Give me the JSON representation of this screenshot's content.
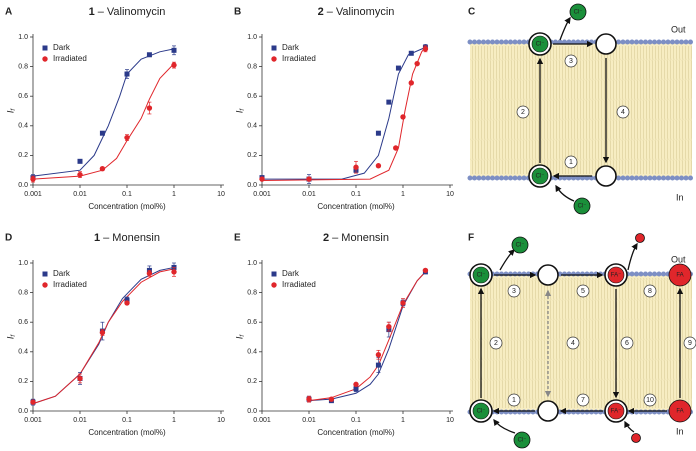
{
  "chart_data": [
    {
      "type": "scatter",
      "panel": "A",
      "compound": "1",
      "title": "– Valinomycin",
      "xlabel": "Concentration (mol%)",
      "ylabel": "I",
      "ylabel_subscript": "f",
      "xscale": "log",
      "xlim": [
        0.001,
        10
      ],
      "xticks": [
        0.001,
        0.01,
        0.1,
        1,
        10
      ],
      "ylim": [
        0,
        1
      ],
      "yticks": [
        {
          "value": 0,
          "label": "0.0"
        },
        0.2,
        0.4,
        0.6,
        0.8,
        {
          "value": 1,
          "label": "1.0"
        }
      ],
      "legend": "upper left",
      "series": [
        {
          "name": "Dark",
          "color": "#2b3a8a",
          "marker": "square",
          "x": [
            0.001,
            0.01,
            0.03,
            0.1,
            0.3,
            1
          ],
          "values": [
            0.05,
            0.16,
            0.35,
            0.75,
            0.88,
            0.91
          ],
          "errors": [
            0.02,
            0.01,
            0.01,
            0.03,
            0.01,
            0.03
          ]
        },
        {
          "name": "Irradiated",
          "color": "#e0262b",
          "marker": "circle",
          "x": [
            0.001,
            0.01,
            0.03,
            0.1,
            0.3,
            1
          ],
          "values": [
            0.04,
            0.07,
            0.11,
            0.32,
            0.52,
            0.81
          ],
          "errors": [
            0.02,
            0.02,
            0.01,
            0.02,
            0.04,
            0.02
          ]
        }
      ],
      "fits": [
        {
          "color": "#2b3a8a",
          "x": [
            0.001,
            0.01,
            0.02,
            0.04,
            0.07,
            0.1,
            0.2,
            0.5,
            1
          ],
          "values": [
            0.06,
            0.1,
            0.2,
            0.4,
            0.6,
            0.75,
            0.85,
            0.9,
            0.92
          ]
        },
        {
          "color": "#e0262b",
          "x": [
            0.001,
            0.01,
            0.03,
            0.06,
            0.1,
            0.2,
            0.3,
            0.5,
            1
          ],
          "values": [
            0.04,
            0.06,
            0.1,
            0.18,
            0.3,
            0.45,
            0.58,
            0.72,
            0.82
          ]
        }
      ]
    },
    {
      "type": "scatter",
      "panel": "B",
      "compound": "2",
      "title": "– Valinomycin",
      "xlabel": "Concentration (mol%)",
      "ylabel": "I",
      "ylabel_subscript": "f",
      "xscale": "log",
      "xlim": [
        0.001,
        10
      ],
      "xticks": [
        0.001,
        0.01,
        0.1,
        1,
        10
      ],
      "ylim": [
        0,
        1
      ],
      "yticks": [
        {
          "value": 0,
          "label": "0.0"
        },
        0.2,
        0.4,
        0.6,
        0.8,
        {
          "value": 1,
          "label": "1.0"
        }
      ],
      "legend": "upper left",
      "series": [
        {
          "name": "Dark",
          "color": "#2b3a8a",
          "marker": "square",
          "x": [
            0.001,
            0.01,
            0.1,
            0.3,
            0.5,
            0.8,
            1.5,
            3
          ],
          "values": [
            0.05,
            0.04,
            0.1,
            0.35,
            0.56,
            0.79,
            0.89,
            0.93
          ],
          "errors": [
            0.01,
            0.03,
            0.02,
            0.01,
            0.01,
            0.01,
            0.01,
            0.02
          ]
        },
        {
          "name": "Irradiated",
          "color": "#e0262b",
          "marker": "circle",
          "x": [
            0.001,
            0.01,
            0.1,
            0.3,
            0.7,
            1,
            1.5,
            2,
            3
          ],
          "values": [
            0.04,
            0.04,
            0.12,
            0.13,
            0.25,
            0.46,
            0.69,
            0.82,
            0.92
          ],
          "errors": [
            0.01,
            0.01,
            0.04,
            0.01,
            0.01,
            0.01,
            0.01,
            0.01,
            0.02
          ]
        }
      ],
      "fits": [
        {
          "color": "#2b3a8a",
          "x": [
            0.001,
            0.05,
            0.15,
            0.3,
            0.5,
            0.8,
            1.3,
            3
          ],
          "values": [
            0.04,
            0.04,
            0.08,
            0.2,
            0.45,
            0.75,
            0.88,
            0.93
          ]
        },
        {
          "color": "#e0262b",
          "x": [
            0.001,
            0.2,
            0.5,
            0.8,
            1.1,
            1.6,
            2.5,
            3
          ],
          "values": [
            0.03,
            0.04,
            0.1,
            0.25,
            0.5,
            0.75,
            0.9,
            0.93
          ]
        }
      ]
    },
    {
      "type": "scatter",
      "panel": "D",
      "compound": "1",
      "title": "– Monensin",
      "xlabel": "Concentration (mol%)",
      "ylabel": "I",
      "ylabel_subscript": "f",
      "xscale": "log",
      "xlim": [
        0.001,
        10
      ],
      "xticks": [
        0.001,
        0.01,
        0.1,
        1,
        10
      ],
      "ylim": [
        0,
        1
      ],
      "yticks": [
        {
          "value": 0,
          "label": "0.0"
        },
        0.2,
        0.4,
        0.6,
        0.8,
        {
          "value": 1,
          "label": "1.0"
        }
      ],
      "legend": "upper left",
      "series": [
        {
          "name": "Dark",
          "color": "#2b3a8a",
          "marker": "square",
          "x": [
            0.001,
            0.01,
            0.03,
            0.1,
            0.3,
            1
          ],
          "values": [
            0.06,
            0.22,
            0.54,
            0.75,
            0.95,
            0.97
          ],
          "errors": [
            0.02,
            0.04,
            0.06,
            0.02,
            0.03,
            0.03
          ]
        },
        {
          "name": "Irradiated",
          "color": "#e0262b",
          "marker": "circle",
          "x": [
            0.001,
            0.01,
            0.03,
            0.1,
            0.3,
            1
          ],
          "values": [
            0.06,
            0.22,
            0.53,
            0.73,
            0.93,
            0.94
          ],
          "errors": [
            0.01,
            0.03,
            0.02,
            0.01,
            0.02,
            0.03
          ]
        }
      ],
      "fits": [
        {
          "color": "#2b3a8a",
          "x": [
            0.001,
            0.003,
            0.01,
            0.025,
            0.04,
            0.08,
            0.2,
            0.5,
            1
          ],
          "values": [
            0.05,
            0.1,
            0.25,
            0.45,
            0.6,
            0.76,
            0.89,
            0.95,
            0.97
          ]
        },
        {
          "color": "#e0262b",
          "x": [
            0.001,
            0.003,
            0.01,
            0.025,
            0.04,
            0.08,
            0.2,
            0.5,
            1
          ],
          "values": [
            0.05,
            0.1,
            0.25,
            0.46,
            0.6,
            0.74,
            0.87,
            0.94,
            0.96
          ]
        }
      ]
    },
    {
      "type": "scatter",
      "panel": "E",
      "compound": "2",
      "title": "– Monensin",
      "xlabel": "Concentration (mol%)",
      "ylabel": "I",
      "ylabel_subscript": "f",
      "xscale": "log",
      "xlim": [
        0.001,
        10
      ],
      "xticks": [
        0.001,
        0.01,
        0.1,
        1,
        10
      ],
      "ylim": [
        0,
        1
      ],
      "yticks": [
        {
          "value": 0,
          "label": "0.0"
        },
        0.2,
        0.4,
        0.6,
        0.8,
        {
          "value": 1,
          "label": "1.0"
        }
      ],
      "legend": "upper left",
      "series": [
        {
          "name": "Dark",
          "color": "#2b3a8a",
          "marker": "square",
          "x": [
            0.01,
            0.03,
            0.1,
            0.3,
            0.5,
            1,
            3
          ],
          "values": [
            0.08,
            0.07,
            0.15,
            0.31,
            0.55,
            0.73,
            0.94
          ],
          "errors": [
            0.02,
            0.01,
            0.02,
            0.05,
            0.05,
            0.02,
            0.01
          ]
        },
        {
          "name": "Irradiated",
          "color": "#e0262b",
          "marker": "circle",
          "x": [
            0.01,
            0.03,
            0.1,
            0.3,
            0.5,
            1,
            3
          ],
          "values": [
            0.08,
            0.08,
            0.18,
            0.38,
            0.57,
            0.73,
            0.95
          ],
          "errors": [
            0.02,
            0.01,
            0.01,
            0.03,
            0.03,
            0.03,
            0.01
          ]
        }
      ],
      "fits": [
        {
          "color": "#2b3a8a",
          "x": [
            0.01,
            0.03,
            0.1,
            0.2,
            0.3,
            0.5,
            1,
            2,
            3
          ],
          "values": [
            0.07,
            0.08,
            0.12,
            0.18,
            0.25,
            0.42,
            0.71,
            0.88,
            0.94
          ]
        },
        {
          "color": "#e0262b",
          "x": [
            0.01,
            0.03,
            0.1,
            0.2,
            0.3,
            0.5,
            1,
            2,
            3
          ],
          "values": [
            0.07,
            0.09,
            0.15,
            0.23,
            0.31,
            0.48,
            0.72,
            0.88,
            0.94
          ]
        }
      ]
    }
  ],
  "diagrams": [
    {
      "letter": "C",
      "out": "Out",
      "in": "In",
      "ions": [
        "Cl⁻",
        "Cl⁻",
        "Cl⁻",
        "Cl⁻"
      ],
      "steps": [
        "1",
        "2",
        "3",
        "4"
      ]
    },
    {
      "letter": "F",
      "out": "Out",
      "in": "In",
      "ions": [
        "Cl⁻",
        "Cl⁻",
        "FA⁻",
        "FA",
        "Cl⁻",
        "Cl⁻",
        "FA⁻",
        "FA"
      ],
      "steps": [
        "1",
        "2",
        "3",
        "4",
        "5",
        "6",
        "7",
        "8",
        "9",
        "10"
      ]
    }
  ]
}
